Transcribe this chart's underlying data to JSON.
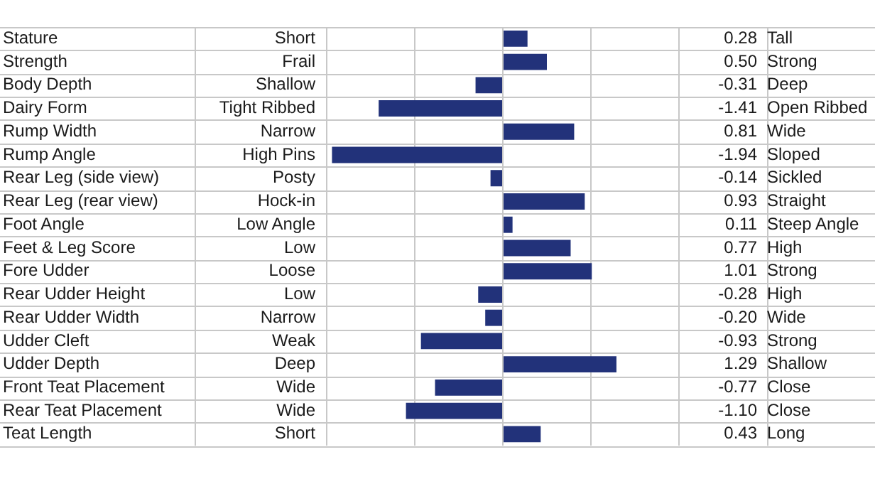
{
  "chart_data": {
    "type": "bar",
    "orientation": "horizontal",
    "categories": [
      "Stature",
      "Strength",
      "Body Depth",
      "Dairy Form",
      "Rump Width",
      "Rump Angle",
      "Rear Leg (side view)",
      "Rear Leg (rear view)",
      "Foot Angle",
      "Feet & Leg Score",
      "Fore Udder",
      "Rear Udder Height",
      "Rear Udder Width",
      "Udder Cleft",
      "Udder Depth",
      "Front Teat Placement",
      "Rear Teat Placement",
      "Teat Length"
    ],
    "values": [
      0.28,
      0.5,
      -0.31,
      -1.41,
      0.81,
      -1.94,
      -0.14,
      0.93,
      0.11,
      0.77,
      1.01,
      -0.28,
      -0.2,
      -0.93,
      1.29,
      -0.77,
      -1.1,
      0.43
    ],
    "value_labels": [
      "0.28",
      "0.50",
      "-0.31",
      "-1.41",
      "0.81",
      "-1.94",
      "-0.14",
      "0.93",
      "0.11",
      "0.77",
      "1.01",
      "-0.28",
      "-0.20",
      "-0.93",
      "1.29",
      "-0.77",
      "-1.10",
      "0.43"
    ],
    "color": "#22327a",
    "xlim": [
      -2,
      2
    ],
    "xticks": [
      {
        "value": -2,
        "label": null
      },
      {
        "value": -1,
        "label": null
      },
      {
        "value": 0,
        "label": null
      },
      {
        "value": 1,
        "label": null
      },
      {
        "value": 2,
        "label": null
      }
    ],
    "grid": "x",
    "legend": false,
    "annotations": [
      "Short",
      "Tall",
      "Frail",
      "Strong",
      "Shallow",
      "Deep",
      "Tight Ribbed",
      "Open Ribbed",
      "Narrow",
      "Wide",
      "High Pins",
      "Sloped",
      "Posty",
      "Sickled",
      "Hock-in",
      "Straight",
      "Low Angle",
      "Steep Angle",
      "Low",
      "High",
      "Loose",
      "Strong",
      "Low",
      "High",
      "Narrow",
      "Wide",
      "Weak",
      "Strong",
      "Deep",
      "Shallow",
      "Wide",
      "Close",
      "Wide",
      "Close",
      "Short",
      "Long"
    ]
  }
}
